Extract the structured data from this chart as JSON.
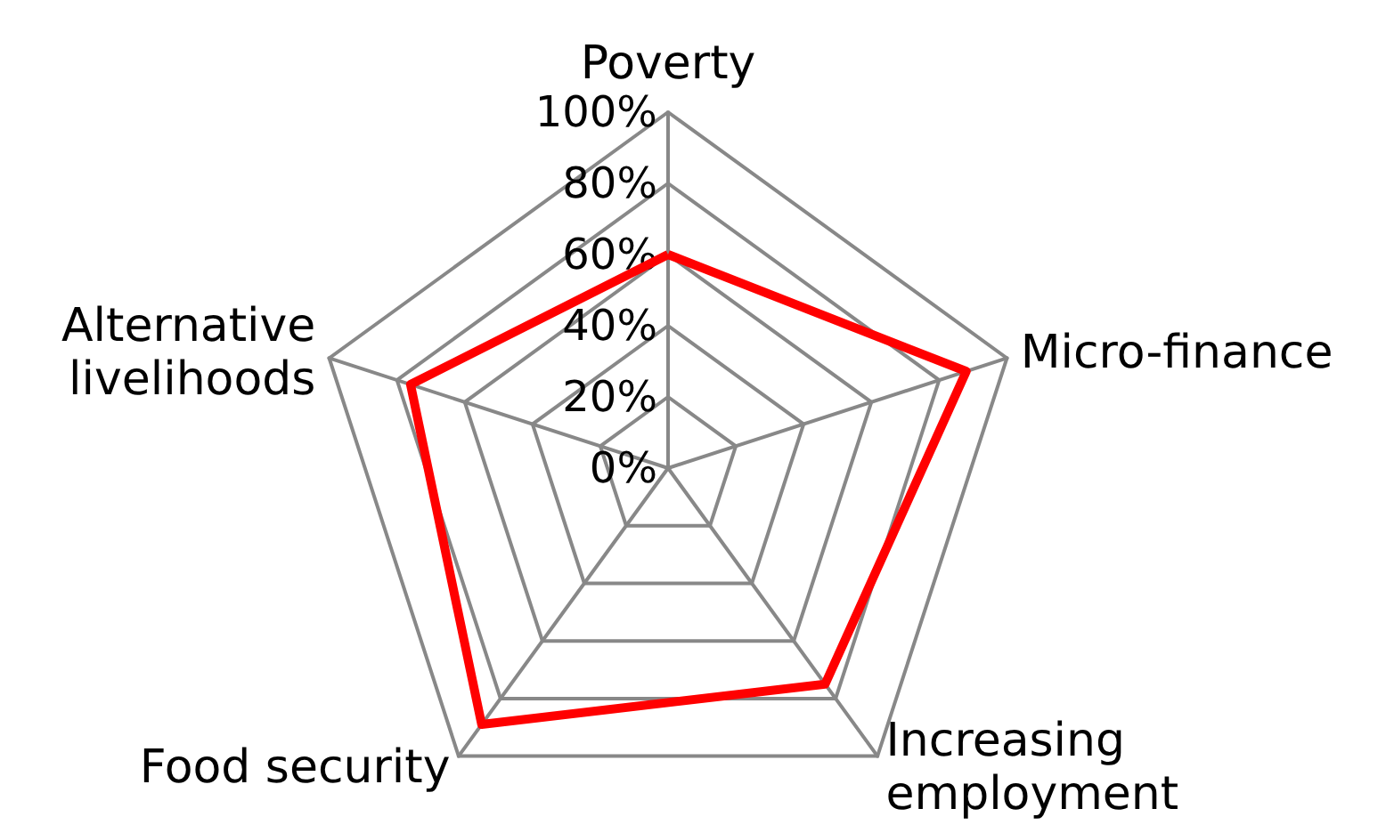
{
  "chart_data": {
    "type": "radar",
    "categories": [
      "Poverty",
      "Micro-finance",
      "Increasing\nemployment",
      "Food security",
      "Alternative\nlivelihoods"
    ],
    "series": [
      {
        "color": "#ff0000",
        "values": [
          60,
          88,
          75,
          89,
          76
        ]
      }
    ],
    "ylim": [
      0,
      100
    ],
    "yticks": [
      {
        "value": 0,
        "label": "0%"
      },
      {
        "value": 20,
        "label": "20%"
      },
      {
        "value": 40,
        "label": "40%"
      },
      {
        "value": 60,
        "label": "60%"
      },
      {
        "value": 80,
        "label": "80%"
      },
      {
        "value": 100,
        "label": "100%"
      }
    ],
    "grid": true,
    "marker": "none",
    "line_style": "solid"
  }
}
